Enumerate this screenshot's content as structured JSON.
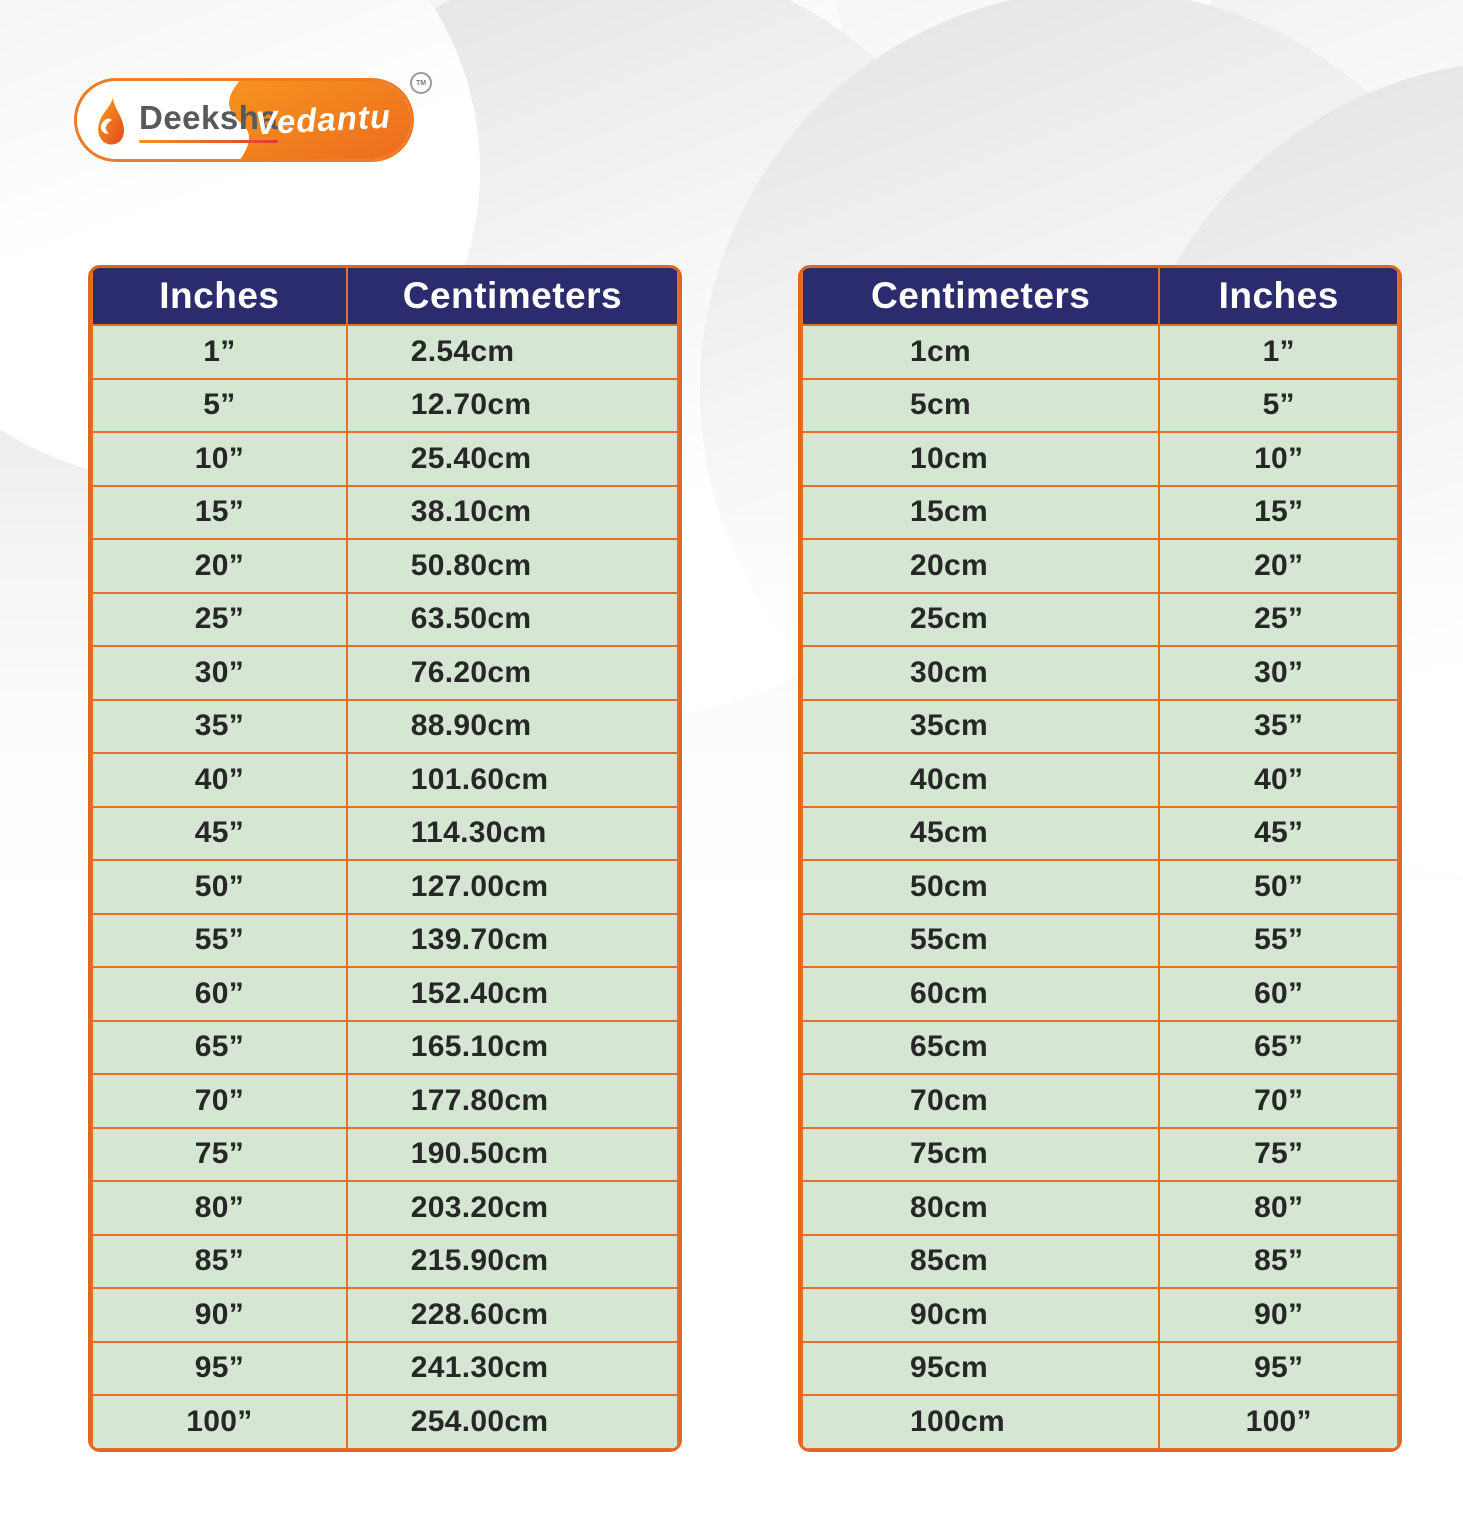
{
  "logo": {
    "deeksha": "Deeksha",
    "vedantu": "Vedantu",
    "trademark": "TM"
  },
  "colors": {
    "header_bg": "#2b2c6e",
    "header_text": "#ffffff",
    "cell_bg": "#d5e7d3",
    "cell_text": "#272727",
    "grid_orange": "#e2702a",
    "logo_orange": "#ee7c27"
  },
  "chart_data": [
    {
      "type": "table",
      "columns": [
        "Inches",
        "Centimeters"
      ],
      "rows": [
        [
          "1”",
          "2.54cm"
        ],
        [
          "5”",
          "12.70cm"
        ],
        [
          "10”",
          "25.40cm"
        ],
        [
          "15”",
          "38.10cm"
        ],
        [
          "20”",
          "50.80cm"
        ],
        [
          "25”",
          "63.50cm"
        ],
        [
          "30”",
          "76.20cm"
        ],
        [
          "35”",
          "88.90cm"
        ],
        [
          "40”",
          "101.60cm"
        ],
        [
          "45”",
          "114.30cm"
        ],
        [
          "50”",
          "127.00cm"
        ],
        [
          "55”",
          "139.70cm"
        ],
        [
          "60”",
          "152.40cm"
        ],
        [
          "65”",
          "165.10cm"
        ],
        [
          "70”",
          "177.80cm"
        ],
        [
          "75”",
          "190.50cm"
        ],
        [
          "80”",
          "203.20cm"
        ],
        [
          "85”",
          "215.90cm"
        ],
        [
          "90”",
          "228.60cm"
        ],
        [
          "95”",
          "241.30cm"
        ],
        [
          "100”",
          "254.00cm"
        ]
      ]
    },
    {
      "type": "table",
      "columns": [
        "Centimeters",
        "Inches"
      ],
      "rows": [
        [
          "1cm",
          "1”"
        ],
        [
          "5cm",
          "5”"
        ],
        [
          "10cm",
          "10”"
        ],
        [
          "15cm",
          "15”"
        ],
        [
          "20cm",
          "20”"
        ],
        [
          "25cm",
          "25”"
        ],
        [
          "30cm",
          "30”"
        ],
        [
          "35cm",
          "35”"
        ],
        [
          "40cm",
          "40”"
        ],
        [
          "45cm",
          "45”"
        ],
        [
          "50cm",
          "50”"
        ],
        [
          "55cm",
          "55”"
        ],
        [
          "60cm",
          "60”"
        ],
        [
          "65cm",
          "65”"
        ],
        [
          "70cm",
          "70”"
        ],
        [
          "75cm",
          "75”"
        ],
        [
          "80cm",
          "80”"
        ],
        [
          "85cm",
          "85”"
        ],
        [
          "90cm",
          "90”"
        ],
        [
          "95cm",
          "95”"
        ],
        [
          "100cm",
          "100”"
        ]
      ]
    }
  ]
}
